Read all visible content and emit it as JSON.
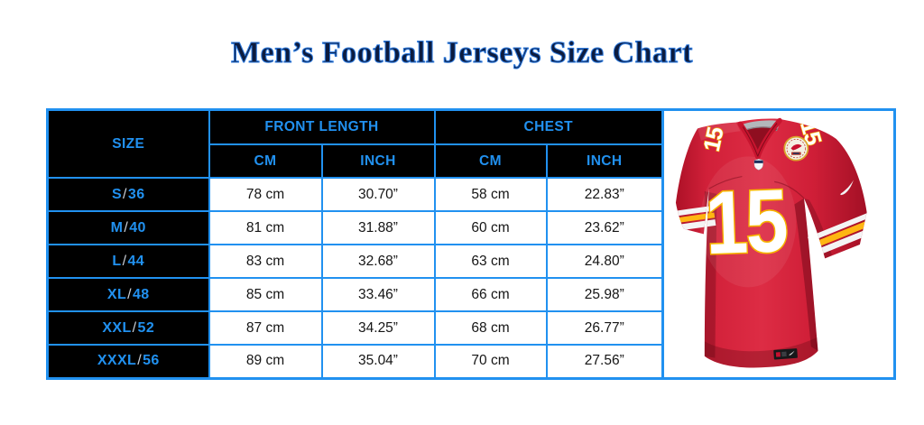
{
  "page": {
    "title": "Men’s Football Jerseys Size Chart"
  },
  "table": {
    "headers": {
      "size": "SIZE",
      "front_length": "FRONT LENGTH",
      "chest": "CHEST",
      "cm": "CM",
      "inch": "INCH"
    },
    "rows": [
      {
        "size": "S/36",
        "front_cm": "78 cm",
        "front_inch": "30.70”",
        "chest_cm": "58 cm",
        "chest_inch": "22.83”"
      },
      {
        "size": "M/40",
        "front_cm": "81 cm",
        "front_inch": "31.88”",
        "chest_cm": "60 cm",
        "chest_inch": "23.62”"
      },
      {
        "size": "L/44",
        "front_cm": "83 cm",
        "front_inch": "32.68”",
        "chest_cm": "63 cm",
        "chest_inch": "24.80”"
      },
      {
        "size": "XL/48",
        "front_cm": "85 cm",
        "front_inch": "33.46”",
        "chest_cm": "66 cm",
        "chest_inch": "25.98”"
      },
      {
        "size": "XXL/52",
        "front_cm": "87 cm",
        "front_inch": "34.25”",
        "chest_cm": "68 cm",
        "chest_inch": "26.77”"
      },
      {
        "size": "XXXL/56",
        "front_cm": "89 cm",
        "front_inch": "35.04”",
        "chest_cm": "70 cm",
        "chest_inch": "27.56”"
      }
    ]
  },
  "jersey": {
    "number": "15",
    "description": "red football game jersey with white number 15, gold trim, sleeve stripes"
  },
  "colors": {
    "accent_blue": "#2191f0",
    "header_bg": "#000000",
    "slash_gray": "#c9ced6",
    "title_navy": "#0d1c3f",
    "jersey_red": "#d41e37",
    "jersey_gold": "#f7b500",
    "jersey_white": "#ffffff"
  },
  "chart_data": {
    "type": "table",
    "title": "Men’s Football Jerseys Size Chart",
    "columns": [
      "Size",
      "Front Length (cm)",
      "Front Length (inch)",
      "Chest (cm)",
      "Chest (inch)"
    ],
    "rows": [
      [
        "S/36",
        78,
        30.7,
        58,
        22.83
      ],
      [
        "M/40",
        81,
        31.88,
        60,
        23.62
      ],
      [
        "L/44",
        83,
        32.68,
        63,
        24.8
      ],
      [
        "XL/48",
        85,
        33.46,
        66,
        25.98
      ],
      [
        "XXL/52",
        87,
        34.25,
        68,
        26.77
      ],
      [
        "XXXL/56",
        89,
        35.04,
        70,
        27.56
      ]
    ]
  }
}
